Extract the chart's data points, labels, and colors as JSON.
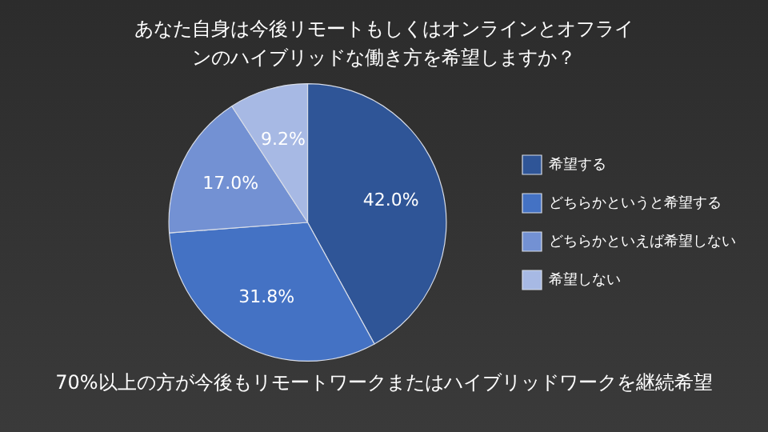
{
  "chart_data": {
    "type": "pie",
    "title": "あなた自身は今後リモートもしくはオンラインとオフラインのハイブリッドな働き方を希望しますか？",
    "categories": [
      "希望する",
      "どちらかというと希望する",
      "どちらかといえば希望しない",
      "希望しない"
    ],
    "values": [
      42.0,
      31.8,
      17.0,
      9.2
    ],
    "value_labels": [
      "42.0%",
      "31.8%",
      "17.0%",
      "9.2%"
    ],
    "colors": [
      "#2f5597",
      "#4472c4",
      "#7391d3",
      "#a7b9e4"
    ],
    "legend": "right",
    "annotations": [
      "70%以上の方が今後もリモートワークまたはハイブリッドワークを継続希望"
    ]
  }
}
